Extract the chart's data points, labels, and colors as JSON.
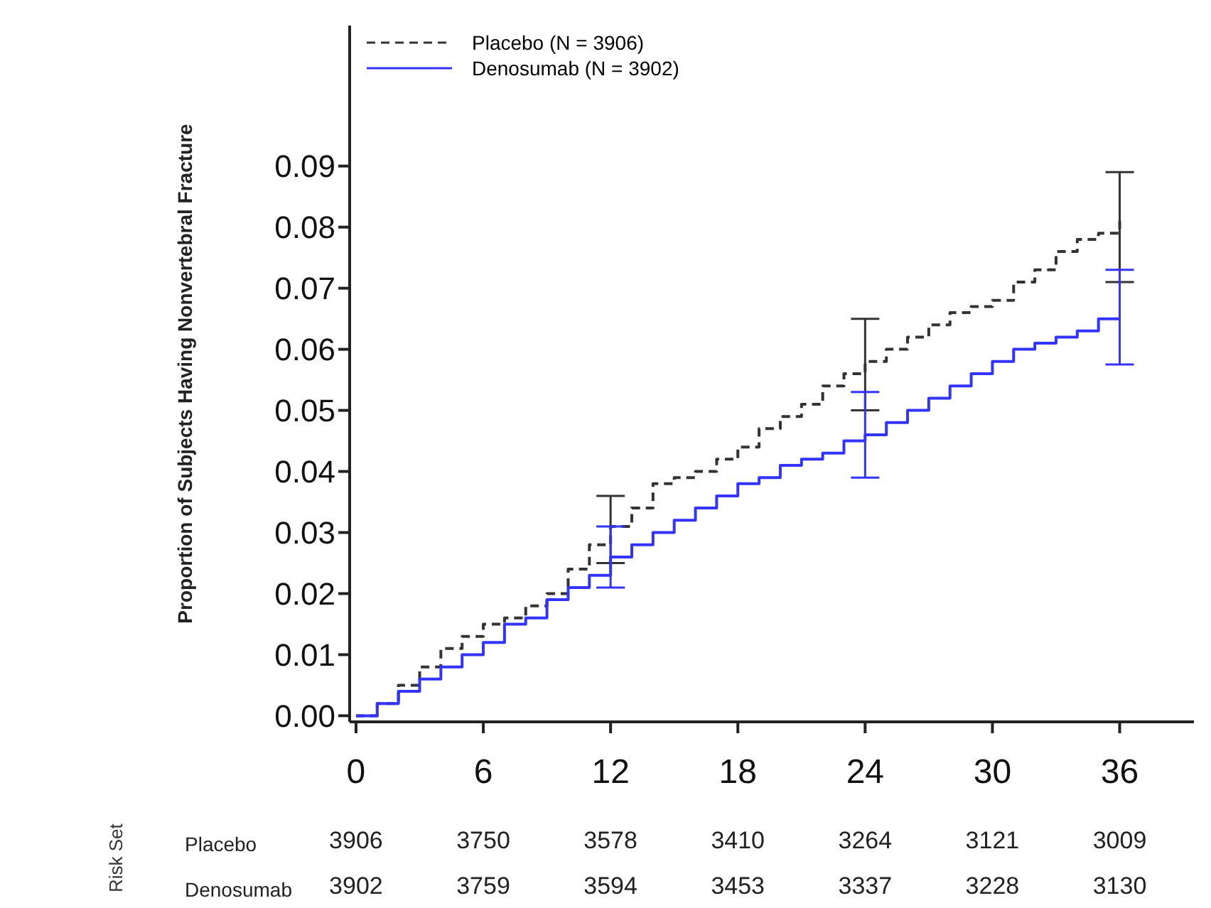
{
  "chart_data": {
    "type": "step",
    "ylabel": "Proportion of Subjects Having Nonvertebral Fracture",
    "x": [
      0,
      1,
      2,
      3,
      4,
      5,
      6,
      7,
      8,
      9,
      10,
      11,
      12,
      13,
      14,
      15,
      16,
      17,
      18,
      19,
      20,
      21,
      22,
      23,
      24,
      25,
      26,
      27,
      28,
      29,
      30,
      31,
      32,
      33,
      34,
      35,
      36
    ],
    "series": [
      {
        "name": "Placebo (N = 3906)",
        "color": "#333333",
        "line_style": "dashed",
        "values": [
          0,
          0.002,
          0.005,
          0.008,
          0.011,
          0.013,
          0.015,
          0.016,
          0.018,
          0.02,
          0.024,
          0.028,
          0.031,
          0.034,
          0.038,
          0.039,
          0.04,
          0.042,
          0.044,
          0.047,
          0.049,
          0.051,
          0.054,
          0.056,
          0.058,
          0.06,
          0.062,
          0.064,
          0.066,
          0.067,
          0.068,
          0.071,
          0.073,
          0.076,
          0.078,
          0.079,
          0.081
        ],
        "errors": [
          null,
          null,
          null,
          null,
          null,
          null,
          null,
          null,
          null,
          null,
          null,
          null,
          [
            0.025,
            0.036
          ],
          null,
          null,
          null,
          null,
          null,
          null,
          null,
          null,
          null,
          null,
          null,
          [
            0.05,
            0.065
          ],
          null,
          null,
          null,
          null,
          null,
          null,
          null,
          null,
          null,
          null,
          null,
          [
            0.071,
            0.089
          ]
        ]
      },
      {
        "name": "Denosumab (N = 3902)",
        "color": "#3333ff",
        "line_style": "solid",
        "values": [
          0,
          0.002,
          0.004,
          0.006,
          0.008,
          0.01,
          0.012,
          0.015,
          0.016,
          0.019,
          0.021,
          0.023,
          0.026,
          0.028,
          0.03,
          0.032,
          0.034,
          0.036,
          0.038,
          0.039,
          0.041,
          0.042,
          0.043,
          0.045,
          0.046,
          0.048,
          0.05,
          0.052,
          0.054,
          0.056,
          0.058,
          0.06,
          0.061,
          0.062,
          0.063,
          0.065,
          0.065
        ],
        "errors": [
          null,
          null,
          null,
          null,
          null,
          null,
          null,
          null,
          null,
          null,
          null,
          null,
          [
            0.021,
            0.031
          ],
          null,
          null,
          null,
          null,
          null,
          null,
          null,
          null,
          null,
          null,
          null,
          [
            0.039,
            0.053
          ],
          null,
          null,
          null,
          null,
          null,
          null,
          null,
          null,
          null,
          null,
          null,
          [
            0.0575,
            0.073
          ]
        ]
      }
    ],
    "xlim": [
      -0.3,
      39.5
    ],
    "xticks": [
      0,
      6,
      12,
      18,
      24,
      30,
      36
    ],
    "ylim": [
      -0.001,
      0.113
    ],
    "yticks": [
      {
        "value": 0,
        "label": "0.00"
      },
      {
        "value": 0.01,
        "label": "0.01"
      },
      {
        "value": 0.02,
        "label": "0.02"
      },
      {
        "value": 0.03,
        "label": "0.03"
      },
      {
        "value": 0.04,
        "label": "0.04"
      },
      {
        "value": 0.05,
        "label": "0.05"
      },
      {
        "value": 0.06,
        "label": "0.06"
      },
      {
        "value": 0.07,
        "label": "0.07"
      },
      {
        "value": 0.08,
        "label": "0.08"
      },
      {
        "value": 0.09,
        "label": "0.09"
      }
    ],
    "legend": "top left",
    "grid": false,
    "annotations": [
      "Risk Set",
      "Placebo",
      "3906",
      "3750",
      "3578",
      "3410",
      "3264",
      "3121",
      "3009",
      "Denosumab",
      "3902",
      "3759",
      "3594",
      "3453",
      "3337",
      "3228",
      "3130"
    ]
  }
}
